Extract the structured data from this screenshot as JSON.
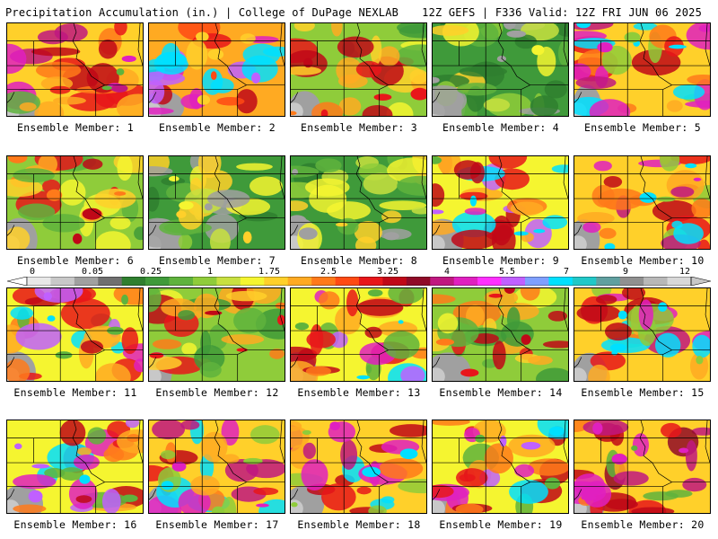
{
  "header": {
    "left_title": "Precipitation Accumulation (in.) | College of DuPage NEXLAB",
    "right_title": "12Z GEFS | F336 Valid: 12Z FRI JUN 06 2025"
  },
  "members": [
    {
      "label": "Ensemble Member: 1",
      "theme": "wet_north"
    },
    {
      "label": "Ensemble Member: 2",
      "theme": "wet_west"
    },
    {
      "label": "Ensemble Member: 3",
      "theme": "moderate"
    },
    {
      "label": "Ensemble Member: 4",
      "theme": "dry"
    },
    {
      "label": "Ensemble Member: 5",
      "theme": "wet_east"
    },
    {
      "label": "Ensemble Member: 6",
      "theme": "moderate"
    },
    {
      "label": "Ensemble Member: 7",
      "theme": "dry"
    },
    {
      "label": "Ensemble Member: 8",
      "theme": "dry"
    },
    {
      "label": "Ensemble Member: 9",
      "theme": "wet_south"
    },
    {
      "label": "Ensemble Member: 10",
      "theme": "wet_east"
    },
    {
      "label": "Ensemble Member: 11",
      "theme": "wet_south"
    },
    {
      "label": "Ensemble Member: 12",
      "theme": "moderate"
    },
    {
      "label": "Ensemble Member: 13",
      "theme": "wet_south"
    },
    {
      "label": "Ensemble Member: 14",
      "theme": "moderate"
    },
    {
      "label": "Ensemble Member: 15",
      "theme": "wet_east"
    },
    {
      "label": "Ensemble Member: 16",
      "theme": "wet_south"
    },
    {
      "label": "Ensemble Member: 17",
      "theme": "wet_east"
    },
    {
      "label": "Ensemble Member: 18",
      "theme": "wet_east"
    },
    {
      "label": "Ensemble Member: 19",
      "theme": "wet_south"
    },
    {
      "label": "Ensemble Member: 20",
      "theme": "wet_north"
    }
  ],
  "colorbar": {
    "tick_labels": [
      "0",
      "0.05",
      "0.25",
      "1",
      "1.75",
      "2.5",
      "3.25",
      "4",
      "5.5",
      "7",
      "9",
      "12"
    ],
    "colors": [
      "#e8e8e8",
      "#c8c8c8",
      "#a0a0a0",
      "#707070",
      "#2f7f2f",
      "#3f9a3a",
      "#5fb33d",
      "#8fcc3a",
      "#c8e040",
      "#f5f530",
      "#ffd02a",
      "#ffaa22",
      "#ff7a1a",
      "#ff4a14",
      "#e8161a",
      "#c00818",
      "#900a28",
      "#c01880",
      "#e020c0",
      "#ff30ff",
      "#c060ff",
      "#7fa0ff",
      "#00e0ff",
      "#20c8c8",
      "#60a0a0",
      "#909090",
      "#b8b8b8",
      "#d8d8d8"
    ]
  }
}
